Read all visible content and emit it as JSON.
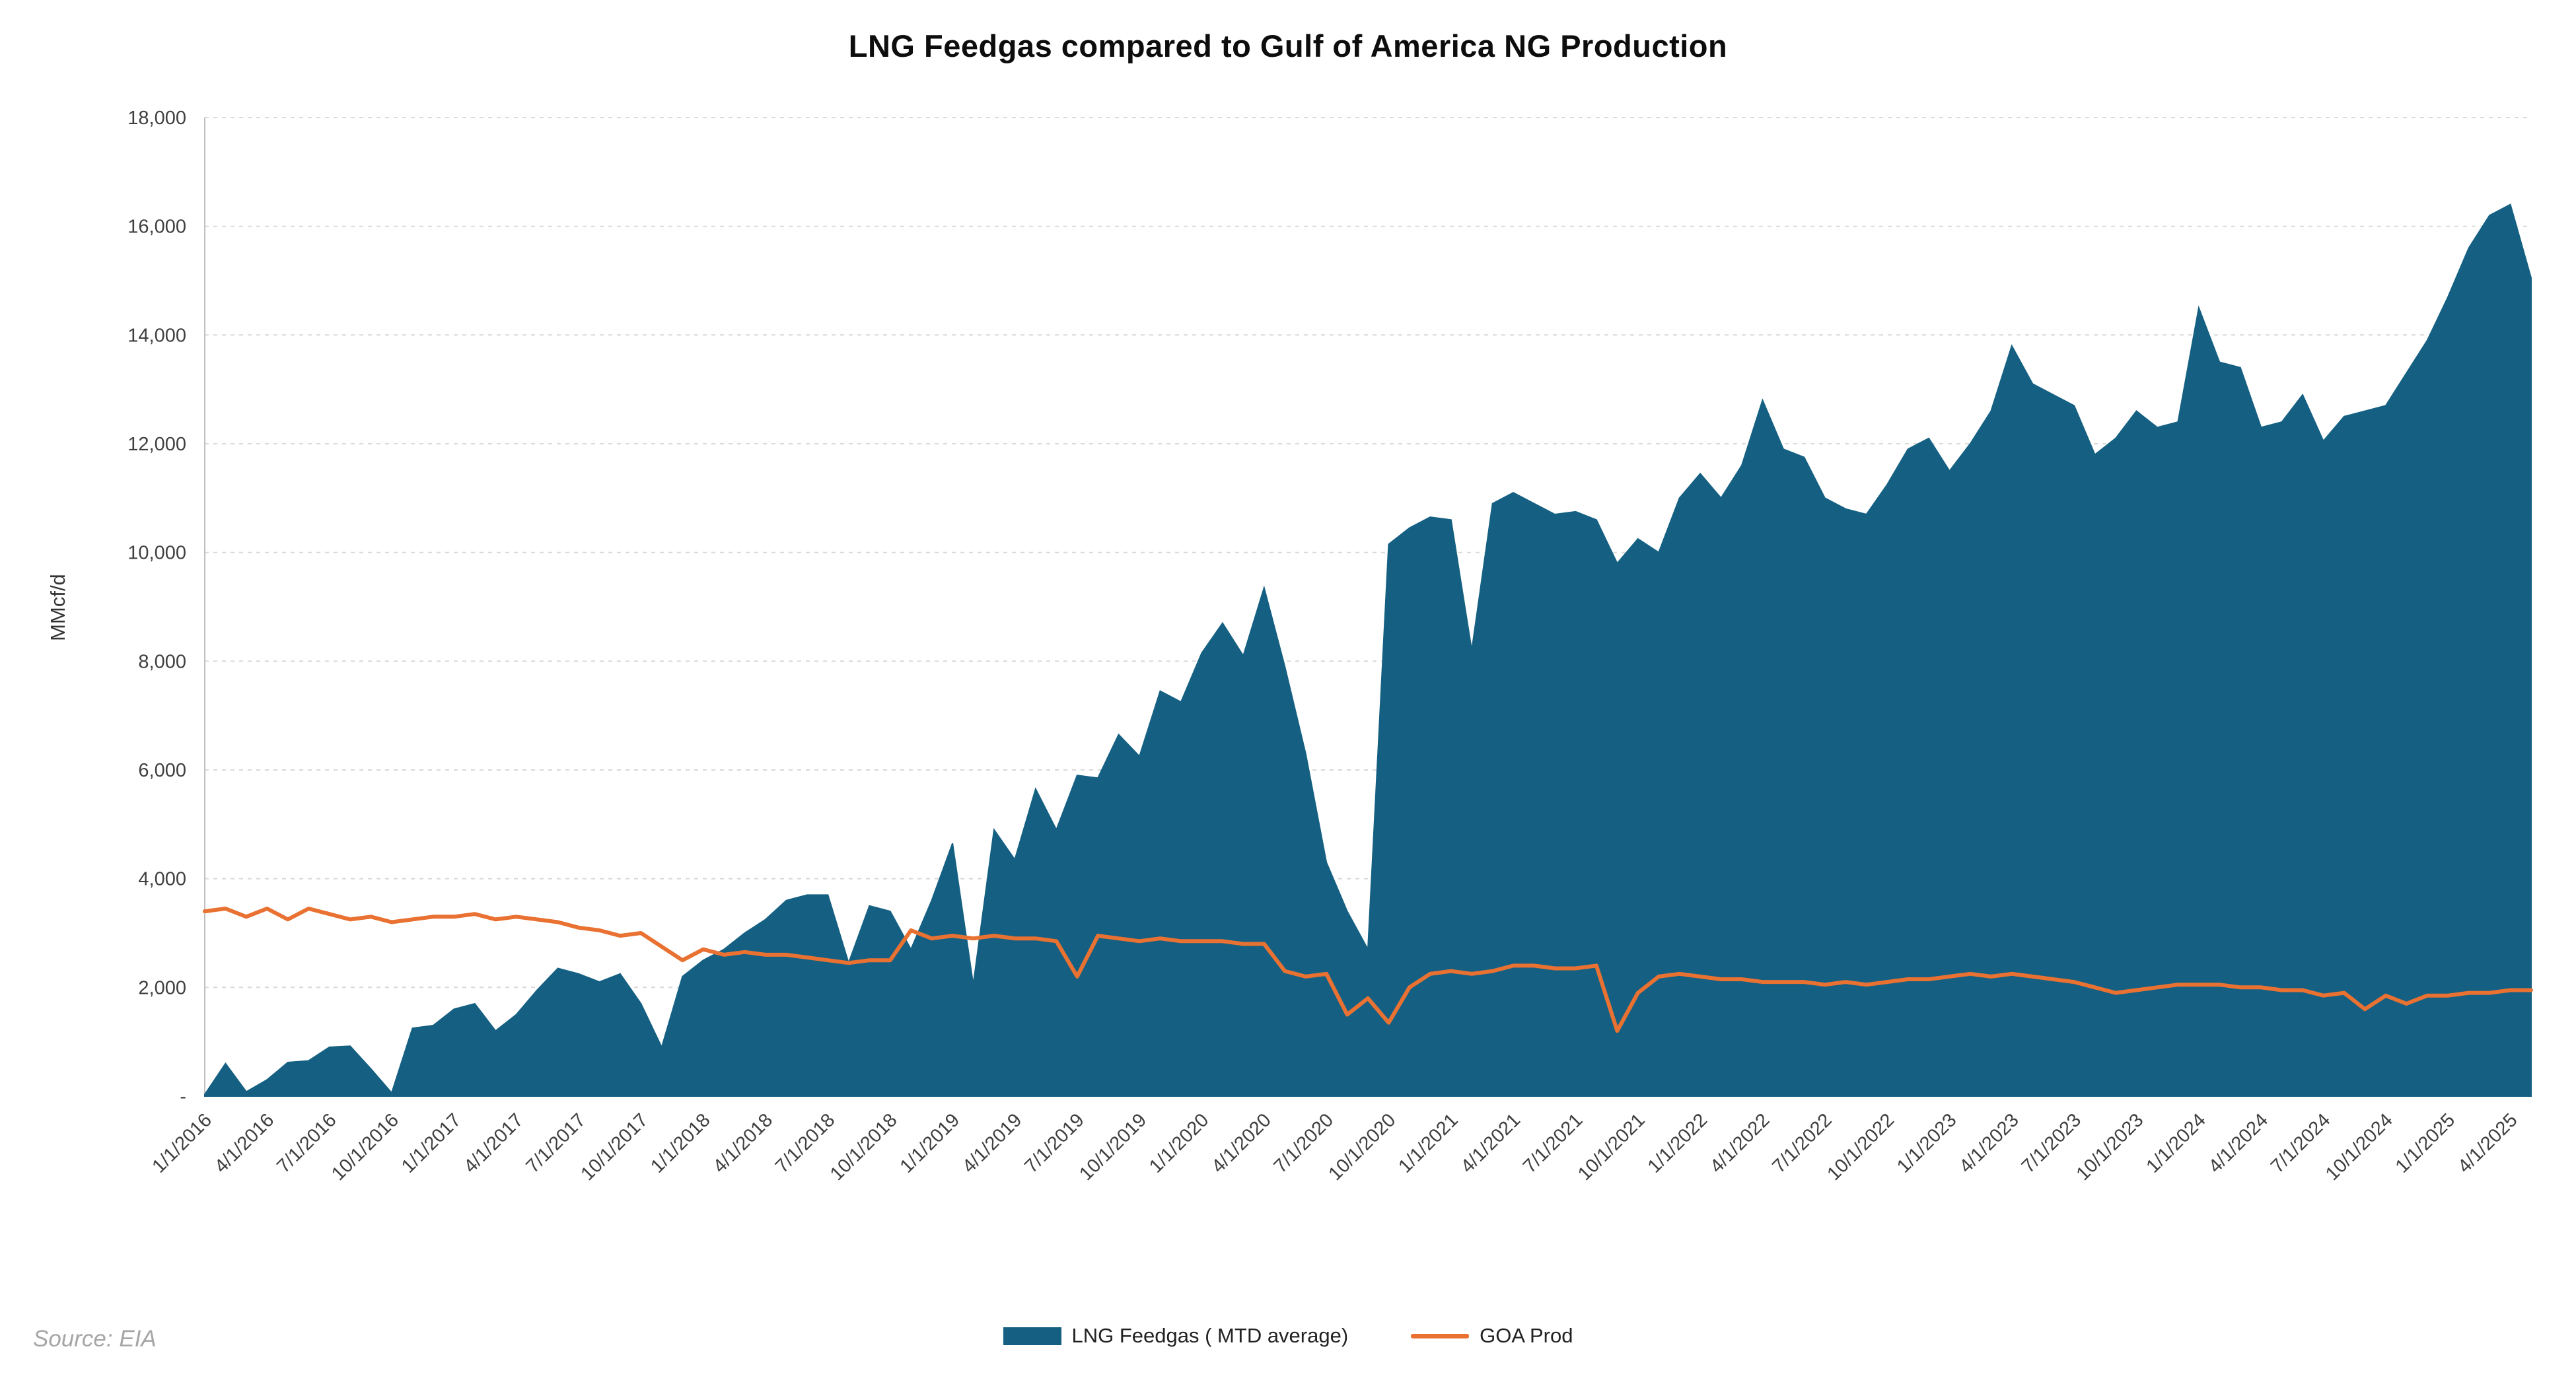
{
  "chart_data": {
    "type": "area",
    "title": "LNG Feedgas compared to Gulf of America NG Production",
    "xlabel": "",
    "ylabel": "MMcf/d",
    "ylim": [
      0,
      18000
    ],
    "ytick_step": 2000,
    "y_tick_labels": [
      "-",
      "2,000",
      "4,000",
      "6,000",
      "8,000",
      "10,000",
      "12,000",
      "14,000",
      "16,000",
      "18,000"
    ],
    "x_label_every": 3,
    "grid": "horizontal-dashed",
    "legend_position": "bottom",
    "x": [
      "1/1/2016",
      "2/1/2016",
      "3/1/2016",
      "4/1/2016",
      "5/1/2016",
      "6/1/2016",
      "7/1/2016",
      "8/1/2016",
      "9/1/2016",
      "10/1/2016",
      "11/1/2016",
      "12/1/2016",
      "1/1/2017",
      "2/1/2017",
      "3/1/2017",
      "4/1/2017",
      "5/1/2017",
      "6/1/2017",
      "7/1/2017",
      "8/1/2017",
      "9/1/2017",
      "10/1/2017",
      "11/1/2017",
      "12/1/2017",
      "1/1/2018",
      "2/1/2018",
      "3/1/2018",
      "4/1/2018",
      "5/1/2018",
      "6/1/2018",
      "7/1/2018",
      "8/1/2018",
      "9/1/2018",
      "10/1/2018",
      "11/1/2018",
      "12/1/2018",
      "1/1/2019",
      "2/1/2019",
      "3/1/2019",
      "4/1/2019",
      "5/1/2019",
      "6/1/2019",
      "7/1/2019",
      "8/1/2019",
      "9/1/2019",
      "10/1/2019",
      "11/1/2019",
      "12/1/2019",
      "1/1/2020",
      "2/1/2020",
      "3/1/2020",
      "4/1/2020",
      "5/1/2020",
      "6/1/2020",
      "7/1/2020",
      "8/1/2020",
      "9/1/2020",
      "10/1/2020",
      "11/1/2020",
      "12/1/2020",
      "1/1/2021",
      "2/1/2021",
      "3/1/2021",
      "4/1/2021",
      "5/1/2021",
      "6/1/2021",
      "7/1/2021",
      "8/1/2021",
      "9/1/2021",
      "10/1/2021",
      "11/1/2021",
      "12/1/2021",
      "1/1/2022",
      "2/1/2022",
      "3/1/2022",
      "4/1/2022",
      "5/1/2022",
      "6/1/2022",
      "7/1/2022",
      "8/1/2022",
      "9/1/2022",
      "10/1/2022",
      "11/1/2022",
      "12/1/2022",
      "1/1/2023",
      "2/1/2023",
      "3/1/2023",
      "4/1/2023",
      "5/1/2023",
      "6/1/2023",
      "7/1/2023",
      "8/1/2023",
      "9/1/2023",
      "10/1/2023",
      "11/1/2023",
      "12/1/2023",
      "1/1/2024",
      "2/1/2024",
      "3/1/2024",
      "4/1/2024",
      "5/1/2024",
      "6/1/2024",
      "7/1/2024",
      "8/1/2024",
      "9/1/2024",
      "10/1/2024",
      "11/1/2024",
      "12/1/2024",
      "1/1/2025",
      "2/1/2025",
      "3/1/2025",
      "4/1/2025",
      "5/1/2025"
    ],
    "series": [
      {
        "name": "LNG Feedgas ( MTD average)",
        "type": "area",
        "color": "#156082",
        "values": [
          30,
          600,
          80,
          300,
          620,
          650,
          900,
          920,
          500,
          60,
          1250,
          1300,
          1600,
          1700,
          1200,
          1500,
          1950,
          2350,
          2250,
          2100,
          2250,
          1700,
          900,
          2200,
          2500,
          2700,
          3000,
          3250,
          3600,
          3700,
          3700,
          2450,
          3500,
          3400,
          2700,
          3600,
          4650,
          2050,
          4900,
          4350,
          5650,
          4900,
          5900,
          5850,
          6650,
          6250,
          7450,
          7250,
          8150,
          8700,
          8100,
          9350,
          7900,
          6300,
          4300,
          3400,
          2700,
          10150,
          10450,
          10650,
          10600,
          8200,
          10900,
          11100,
          10900,
          10700,
          10750,
          10600,
          9800,
          10250,
          10000,
          11000,
          11450,
          11000,
          11600,
          12800,
          11900,
          11750,
          11000,
          10800,
          10700,
          11250,
          11900,
          12100,
          11500,
          12000,
          12600,
          13800,
          13100,
          12900,
          12700,
          11800,
          12100,
          12600,
          12300,
          12400,
          14500,
          13500,
          13400,
          12300,
          12400,
          12900,
          12050,
          12500,
          12600,
          12700,
          13300,
          13900,
          14700,
          15600,
          16200,
          16400,
          15050
        ]
      },
      {
        "name": "GOA Prod",
        "type": "line",
        "color": "#E97132",
        "values": [
          3400,
          3450,
          3300,
          3450,
          3250,
          3450,
          3350,
          3250,
          3300,
          3200,
          3250,
          3300,
          3300,
          3350,
          3250,
          3300,
          3250,
          3200,
          3100,
          3050,
          2950,
          3000,
          2750,
          2500,
          2700,
          2600,
          2650,
          2600,
          2600,
          2550,
          2500,
          2450,
          2500,
          2500,
          3050,
          2900,
          2950,
          2900,
          2950,
          2900,
          2900,
          2850,
          2200,
          2950,
          2900,
          2850,
          2900,
          2850,
          2850,
          2850,
          2800,
          2800,
          2300,
          2200,
          2250,
          1500,
          1800,
          1350,
          2000,
          2250,
          2300,
          2250,
          2300,
          2400,
          2400,
          2350,
          2350,
          2400,
          1200,
          1900,
          2200,
          2250,
          2200,
          2150,
          2150,
          2100,
          2100,
          2100,
          2050,
          2100,
          2050,
          2100,
          2150,
          2150,
          2200,
          2250,
          2200,
          2250,
          2200,
          2150,
          2100,
          2000,
          1900,
          1950,
          2000,
          2050,
          2050,
          2050,
          2000,
          2000,
          1950,
          1950,
          1850,
          1900,
          1600,
          1850,
          1700,
          1850,
          1850,
          1900,
          1900,
          1950,
          1950
        ]
      }
    ]
  },
  "source_note": "Source: EIA",
  "colors": {
    "area": "#156082",
    "line": "#E97132",
    "grid": "#D9D9D9",
    "axis": "#BFBFBF",
    "tick_text": "#3F3F3F",
    "title_text": "#0D0D0D",
    "source_text": "#A6A6A6"
  }
}
